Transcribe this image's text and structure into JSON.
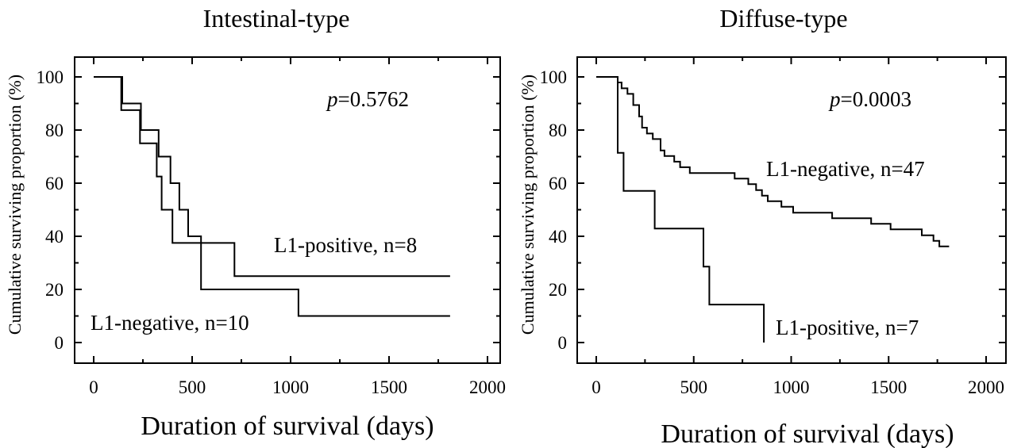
{
  "chart_data": [
    {
      "type": "line",
      "title": "Intestinal-type",
      "xlabel": "Duration of survival (days)",
      "ylabel": "Cumulative surviving proportion (%)",
      "xlim": [
        0,
        2000
      ],
      "ylim": [
        0,
        100
      ],
      "xticks": [
        0,
        500,
        1000,
        1500,
        2000
      ],
      "yticks": [
        0,
        20,
        40,
        60,
        80,
        100
      ],
      "grid": false,
      "annotations": {
        "p_symbol": "p",
        "p_value": "=0.5762"
      },
      "series": [
        {
          "name": "L1-positive, n=8",
          "x": [
            0,
            140,
            140,
            235,
            235,
            320,
            320,
            345,
            345,
            400,
            400,
            440,
            440,
            715,
            715,
            1810
          ],
          "y": [
            100,
            100,
            87.5,
            87.5,
            75,
            75,
            62.5,
            62.5,
            50,
            50,
            37.5,
            37.5,
            37.5,
            37.5,
            25,
            25
          ]
        },
        {
          "name": "L1-negative, n=10",
          "x": [
            0,
            145,
            145,
            240,
            240,
            330,
            330,
            390,
            390,
            435,
            435,
            480,
            480,
            545,
            545,
            1040,
            1040,
            1810
          ],
          "y": [
            100,
            100,
            90,
            90,
            80,
            80,
            70,
            70,
            60,
            60,
            50,
            50,
            40,
            40,
            20,
            20,
            10,
            10
          ]
        }
      ]
    },
    {
      "type": "line",
      "title": "Diffuse-type",
      "xlabel": "Duration of survival (days)",
      "ylabel": "Cumulative surviving proportion (%)",
      "xlim": [
        0,
        2000
      ],
      "ylim": [
        0,
        100
      ],
      "xticks": [
        0,
        500,
        1000,
        1500,
        2000
      ],
      "yticks": [
        0,
        20,
        40,
        60,
        80,
        100
      ],
      "grid": false,
      "annotations": {
        "p_symbol": "p",
        "p_value": "=0.0003"
      },
      "series": [
        {
          "name": "L1-negative, n=47",
          "x": [
            0,
            110,
            130,
            160,
            190,
            220,
            235,
            260,
            290,
            330,
            350,
            400,
            430,
            480,
            520,
            560,
            710,
            780,
            820,
            850,
            880,
            920,
            950,
            980,
            1010,
            1040,
            1090,
            1150,
            1210,
            1390,
            1410,
            1480,
            1510,
            1580,
            1670,
            1730,
            1760,
            1810
          ],
          "y": [
            100,
            97.9,
            95.7,
            93.6,
            89.4,
            85.1,
            80.9,
            78.7,
            76.6,
            72.3,
            70.2,
            68.1,
            66.0,
            63.8,
            63.8,
            63.8,
            61.7,
            59.6,
            57.4,
            55.3,
            53.2,
            53.2,
            51.1,
            51.1,
            48.9,
            48.9,
            48.9,
            48.9,
            46.8,
            46.8,
            44.7,
            44.7,
            42.6,
            42.6,
            40.4,
            38.3,
            36.2,
            36.2
          ]
        },
        {
          "name": "L1-positive, n=7",
          "x": [
            0,
            110,
            140,
            300,
            550,
            580,
            860
          ],
          "y": [
            100,
            71.4,
            57.1,
            42.9,
            28.6,
            14.3,
            0
          ]
        }
      ]
    }
  ]
}
